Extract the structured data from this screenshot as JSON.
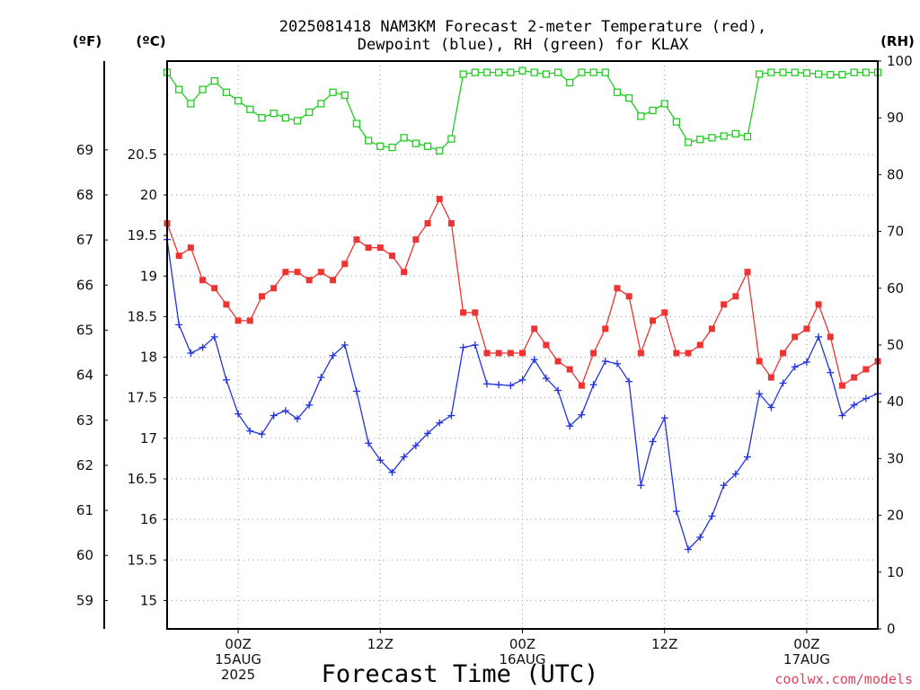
{
  "chart_data": {
    "type": "line",
    "title_line1": "2025081418 NAM3KM Forecast 2-meter Temperature (red),",
    "title_line2": "Dewpoint (blue), RH (green) for KLAX",
    "xlabel": "Forecast Time (UTC)",
    "credit": "coolwx.com/models",
    "unit_f": "(ºF)",
    "unit_c": "(ºC)",
    "unit_rh": "(RH)",
    "x_start_hour": 0,
    "x_end_hour": 60,
    "x_ticks": [
      {
        "hour": 6,
        "lines": [
          "00Z",
          "15AUG",
          "2025"
        ]
      },
      {
        "hour": 18,
        "lines": [
          "12Z"
        ]
      },
      {
        "hour": 30,
        "lines": [
          "00Z",
          "16AUG"
        ]
      },
      {
        "hour": 42,
        "lines": [
          "12Z"
        ]
      },
      {
        "hour": 54,
        "lines": [
          "00Z",
          "17AUG"
        ]
      }
    ],
    "y_celsius": {
      "min": 14.65,
      "max": 21.65,
      "ticks": [
        15,
        15.5,
        16,
        16.5,
        17,
        17.5,
        18,
        18.5,
        19,
        19.5,
        20,
        20.5
      ]
    },
    "y_fahrenheit": {
      "ticks": [
        59,
        60,
        61,
        62,
        63,
        64,
        65,
        66,
        67,
        68,
        69
      ]
    },
    "y_rh": {
      "min": 0,
      "max": 100,
      "ticks": [
        0,
        10,
        20,
        30,
        40,
        50,
        60,
        70,
        80,
        90,
        100
      ]
    },
    "series": [
      {
        "name": "Temperature",
        "color": "#ee3333",
        "marker": "filled-square",
        "axis": "celsius",
        "values": [
          19.65,
          19.25,
          19.35,
          18.95,
          18.85,
          18.65,
          18.45,
          18.45,
          18.75,
          18.85,
          19.05,
          19.05,
          18.95,
          19.05,
          18.95,
          19.15,
          19.45,
          19.35,
          19.35,
          19.25,
          19.05,
          19.45,
          19.65,
          19.95,
          19.65,
          18.55,
          18.55,
          18.05,
          18.05,
          18.05,
          18.05,
          18.35,
          18.15,
          17.95,
          17.85,
          17.65,
          18.05,
          18.35,
          18.85,
          18.75,
          18.05,
          18.45,
          18.55,
          18.05,
          18.05,
          18.15,
          18.35,
          18.65,
          18.75,
          19.05,
          17.95,
          17.75,
          18.05,
          18.25,
          18.35,
          18.65,
          18.25,
          17.65,
          17.75,
          17.85,
          17.95
        ]
      },
      {
        "name": "Dewpoint",
        "color": "#2233dd",
        "marker": "plus",
        "axis": "celsius",
        "values": [
          19.45,
          18.4,
          18.05,
          18.12,
          18.25,
          17.72,
          17.3,
          17.09,
          17.05,
          17.28,
          17.34,
          17.24,
          17.41,
          17.75,
          18.02,
          18.15,
          17.58,
          16.94,
          16.73,
          16.58,
          16.77,
          16.91,
          17.06,
          17.19,
          17.28,
          18.12,
          18.15,
          17.67,
          17.66,
          17.65,
          17.72,
          17.97,
          17.74,
          17.59,
          17.15,
          17.29,
          17.66,
          17.95,
          17.92,
          17.7,
          16.42,
          16.96,
          17.25,
          16.1,
          15.63,
          15.78,
          16.04,
          16.42,
          16.56,
          16.77,
          17.55,
          17.38,
          17.68,
          17.88,
          17.94,
          18.25,
          17.81,
          17.28,
          17.41,
          17.49,
          17.55
        ]
      },
      {
        "name": "RH",
        "color": "#22cc22",
        "marker": "open-square",
        "axis": "rh",
        "values": [
          98,
          95,
          92.5,
          95,
          96.5,
          94.5,
          93,
          91.5,
          90,
          90.8,
          90,
          89.5,
          91,
          92.5,
          94.5,
          94,
          89,
          86,
          85,
          84.8,
          86.5,
          85.5,
          85,
          84.2,
          86.3,
          97.7,
          98,
          98,
          98,
          98,
          98.3,
          98,
          97.7,
          98,
          96.2,
          98,
          98,
          98,
          94.5,
          93.5,
          90.3,
          91.3,
          92.5,
          89.3,
          85.7,
          86.2,
          86.5,
          86.8,
          87.2,
          86.7,
          97.7,
          98,
          98,
          98,
          97.9,
          97.7,
          97.6,
          97.6,
          98,
          98,
          98
        ]
      }
    ],
    "grid": true
  }
}
